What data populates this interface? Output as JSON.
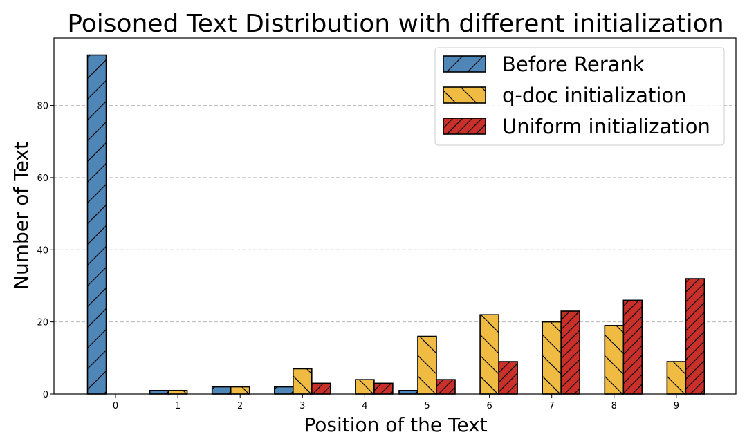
{
  "chart_data": {
    "type": "bar",
    "title": "Poisoned Text Distribution with different initialization",
    "xlabel": "Position of the Text",
    "ylabel": "Number of Text",
    "categories": [
      "0",
      "1",
      "2",
      "3",
      "4",
      "5",
      "6",
      "7",
      "8",
      "9"
    ],
    "ylim": [
      0,
      98.7
    ],
    "yticks": [
      0,
      20,
      40,
      60,
      80
    ],
    "grid": "y-dashed",
    "legend_position": "top-right",
    "series": [
      {
        "name": "Before Rerank",
        "color": "#4E86B8",
        "hatch": "forward-diagonal",
        "values": [
          94,
          1,
          2,
          2,
          0,
          1,
          0,
          0,
          0,
          0
        ]
      },
      {
        "name": "q-doc initialization",
        "color": "#F0BB42",
        "hatch": "back-diagonal",
        "values": [
          0,
          1,
          2,
          7,
          4,
          16,
          22,
          20,
          19,
          9
        ]
      },
      {
        "name": "Uniform initialization",
        "color": "#C9302A",
        "hatch": "dense-forward-diagonal",
        "values": [
          0,
          0,
          0,
          3,
          3,
          4,
          9,
          23,
          26,
          32
        ]
      }
    ]
  }
}
